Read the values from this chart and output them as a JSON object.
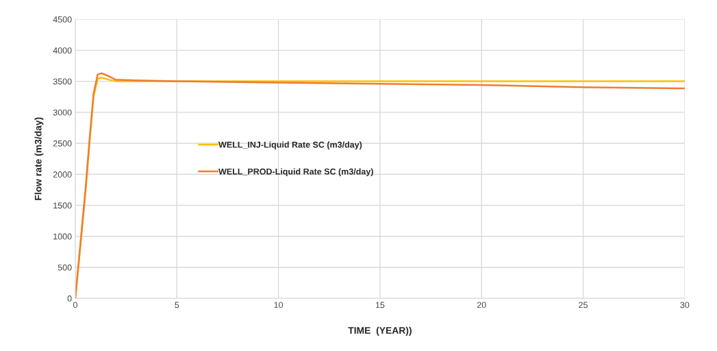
{
  "chart_data": {
    "type": "line",
    "xlabel": "TIME  (YEAR))",
    "ylabel": "Flow rate (m3/day)",
    "xlim": [
      0,
      30
    ],
    "xticks": [
      0,
      5,
      10,
      15,
      20,
      25,
      30
    ],
    "ylim": [
      0,
      4500
    ],
    "yticks": [
      0,
      500,
      1000,
      1500,
      2000,
      2500,
      3000,
      3500,
      4000,
      4500
    ],
    "grid": true,
    "legend": "left",
    "series": [
      {
        "name": "WELL_INJ-Liquid Rate SC (m3/day)",
        "color": "#ffc000",
        "x": [
          0,
          0.3,
          0.5,
          0.7,
          0.9,
          1.1,
          1.3,
          1.6,
          2,
          3,
          5,
          10,
          15,
          20,
          25,
          30
        ],
        "values": [
          0,
          1000,
          1700,
          2500,
          3250,
          3540,
          3560,
          3530,
          3500,
          3500,
          3500,
          3500,
          3500,
          3500,
          3500,
          3500
        ]
      },
      {
        "name": "WELL_PROD-Liquid Rate SC (m3/day)",
        "color": "#ed7d31",
        "x": [
          0,
          0.3,
          0.5,
          0.7,
          0.9,
          1.1,
          1.3,
          1.6,
          2,
          3,
          5,
          10,
          15,
          20,
          25,
          30
        ],
        "values": [
          0,
          1050,
          1750,
          2550,
          3300,
          3610,
          3630,
          3590,
          3525,
          3515,
          3500,
          3480,
          3460,
          3440,
          3405,
          3385
        ]
      }
    ]
  }
}
